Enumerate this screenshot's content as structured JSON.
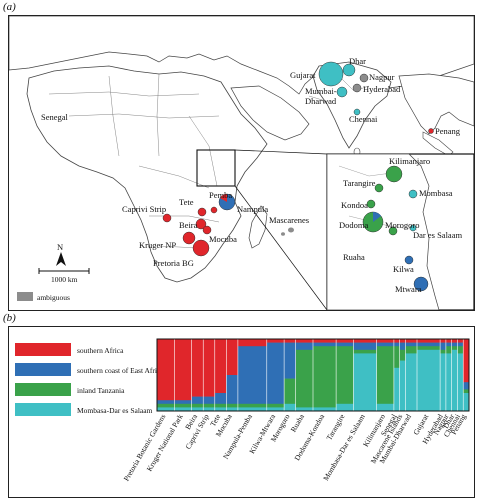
{
  "panels": {
    "a": "(a)",
    "b": "(b)"
  },
  "colors": {
    "southern_africa": "#e0262b",
    "south_coast": "#2f6fb5",
    "inland_tanzania": "#3aa24a",
    "mombasa": "#3fbfc4",
    "ambiguous": "#8c8c8c",
    "land": "#ffffff",
    "border": "#444444"
  },
  "map": {
    "place_labels": [
      {
        "id": "senegal",
        "text": "Senegal"
      },
      {
        "id": "gujarat",
        "text": "Gujarat"
      },
      {
        "id": "dhar",
        "text": "Dhar"
      },
      {
        "id": "nagpur",
        "text": "Nagpur"
      },
      {
        "id": "hyderabad",
        "text": "Hyderabad"
      },
      {
        "id": "mumbai",
        "text": "Mumbai-"
      },
      {
        "id": "dharwad",
        "text": "Dharwad"
      },
      {
        "id": "chennai",
        "text": "Chennai"
      },
      {
        "id": "penang",
        "text": "Penang"
      },
      {
        "id": "caprivi",
        "text": "Caprivi Strip"
      },
      {
        "id": "tete",
        "text": "Tete"
      },
      {
        "id": "pemba",
        "text": "Pemba"
      },
      {
        "id": "nampula",
        "text": "Nampula"
      },
      {
        "id": "beira",
        "text": "Beira"
      },
      {
        "id": "mocuba",
        "text": "Mocuba"
      },
      {
        "id": "kruger",
        "text": "Kruger NP"
      },
      {
        "id": "pretoria",
        "text": "Pretoria BG"
      },
      {
        "id": "mascarenes",
        "text": "Mascarenes"
      }
    ],
    "inset_labels": [
      {
        "id": "kilimanjaro",
        "text": "Kilimanjaro"
      },
      {
        "id": "tarangire",
        "text": "Tarangire"
      },
      {
        "id": "mombasa",
        "text": "Mombasa"
      },
      {
        "id": "kondoa",
        "text": "Kondoa"
      },
      {
        "id": "dodoma",
        "text": "Dodoma"
      },
      {
        "id": "morogoro",
        "text": "Morogoro"
      },
      {
        "id": "dar",
        "text": "Dar es Salaam"
      },
      {
        "id": "ruaha",
        "text": "Ruaha"
      },
      {
        "id": "kilwa",
        "text": "Kilwa"
      },
      {
        "id": "mtwara",
        "text": "Mtwara"
      }
    ],
    "north_arrow": "N",
    "scale_label": "1000 km",
    "legend_ambiguous": "ambiguous"
  },
  "structure": {
    "legend": [
      {
        "key": "southern_africa",
        "label": "southern Africa"
      },
      {
        "key": "south_coast",
        "label": "southern coast of East Africa"
      },
      {
        "key": "inland_tanzania",
        "label": "inland Tanzania"
      },
      {
        "key": "mombasa",
        "label": "Mombasa-Dar es Salaam"
      }
    ],
    "groups": [
      {
        "label": "Pretoria Botanic Gardens",
        "n": 3,
        "mix": [
          0.85,
          0.05,
          0.05,
          0.05
        ]
      },
      {
        "label": "Kruger National Park",
        "n": 3,
        "mix": [
          0.85,
          0.05,
          0.05,
          0.05
        ]
      },
      {
        "label": "Beira",
        "n": 2,
        "mix": [
          0.8,
          0.1,
          0.05,
          0.05
        ]
      },
      {
        "label": "Caprivi Strip",
        "n": 2,
        "mix": [
          0.8,
          0.1,
          0.05,
          0.05
        ]
      },
      {
        "label": "Tete",
        "n": 2,
        "mix": [
          0.75,
          0.15,
          0.05,
          0.05
        ]
      },
      {
        "label": "Mocuba",
        "n": 2,
        "mix": [
          0.5,
          0.4,
          0.05,
          0.05
        ]
      },
      {
        "label": "Nampula-Pemba",
        "n": 5,
        "mix": [
          0.1,
          0.8,
          0.05,
          0.05
        ]
      },
      {
        "label": "Kilwa-Mtwara",
        "n": 3,
        "mix": [
          0.05,
          0.85,
          0.05,
          0.05
        ]
      },
      {
        "label": "Morogoro",
        "n": 2,
        "mix": [
          0.05,
          0.5,
          0.35,
          0.1
        ]
      },
      {
        "label": "Ruaha",
        "n": 3,
        "mix": [
          0.05,
          0.1,
          0.8,
          0.05
        ]
      },
      {
        "label": "Dodoma-Kondoa",
        "n": 4,
        "mix": [
          0.05,
          0.05,
          0.85,
          0.05
        ]
      },
      {
        "label": "Tarangire",
        "n": 3,
        "mix": [
          0.05,
          0.05,
          0.8,
          0.1
        ]
      },
      {
        "label": "Mombasa-Dar es Salaam",
        "n": 4,
        "mix": [
          0.05,
          0.1,
          0.05,
          0.8
        ]
      },
      {
        "label": "Kilimanjaro",
        "n": 3,
        "mix": [
          0.05,
          0.05,
          0.8,
          0.1
        ]
      },
      {
        "label": "Senegal",
        "n": 1,
        "mix": [
          0.05,
          0.05,
          0.3,
          0.6
        ]
      },
      {
        "label": "Mascarene Islands",
        "n": 1,
        "mix": [
          0.05,
          0.1,
          0.15,
          0.7
        ]
      },
      {
        "label": "Mumbai-Dharwad",
        "n": 2,
        "mix": [
          0.05,
          0.05,
          0.1,
          0.8
        ]
      },
      {
        "label": "Gujarat",
        "n": 4,
        "mix": [
          0.05,
          0.05,
          0.05,
          0.85
        ]
      },
      {
        "label": "Hyderabad",
        "n": 1,
        "mix": [
          0.05,
          0.1,
          0.05,
          0.8
        ]
      },
      {
        "label": "Nagpur",
        "n": 1,
        "mix": [
          0.05,
          0.05,
          0.1,
          0.8
        ]
      },
      {
        "label": "Dhar",
        "n": 1,
        "mix": [
          0.05,
          0.05,
          0.05,
          0.85
        ]
      },
      {
        "label": "Chennai",
        "n": 1,
        "mix": [
          0.05,
          0.05,
          0.1,
          0.8
        ]
      },
      {
        "label": "Penang",
        "n": 1,
        "mix": [
          0.6,
          0.1,
          0.05,
          0.25
        ]
      }
    ]
  }
}
